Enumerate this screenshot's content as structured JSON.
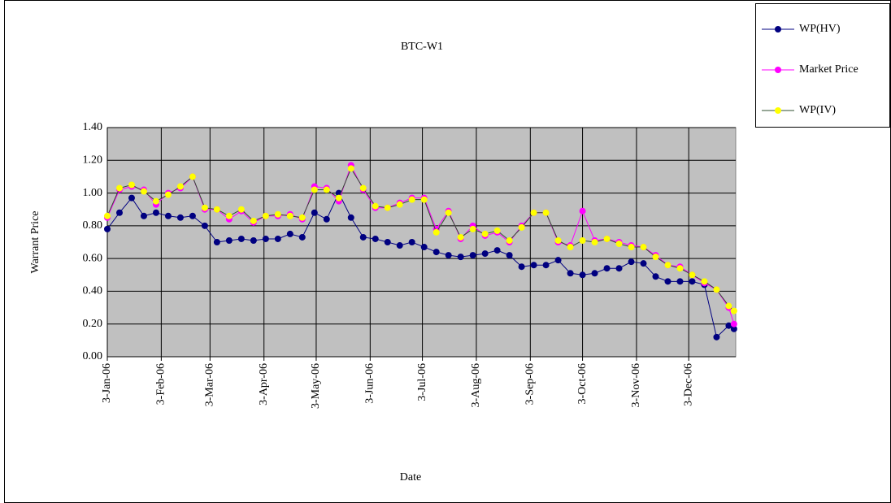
{
  "chart_data": {
    "type": "line",
    "title": "BTC-W1",
    "x_label": "Date",
    "y_label": "Warrant Price",
    "x": [
      "2006-01-03",
      "2006-01-10",
      "2006-01-17",
      "2006-01-24",
      "2006-01-31",
      "2006-02-07",
      "2006-02-14",
      "2006-02-21",
      "2006-02-28",
      "2006-03-07",
      "2006-03-14",
      "2006-03-21",
      "2006-03-28",
      "2006-04-04",
      "2006-04-11",
      "2006-04-18",
      "2006-04-25",
      "2006-05-02",
      "2006-05-09",
      "2006-05-16",
      "2006-05-23",
      "2006-05-30",
      "2006-06-06",
      "2006-06-13",
      "2006-06-20",
      "2006-06-27",
      "2006-07-04",
      "2006-07-11",
      "2006-07-18",
      "2006-07-25",
      "2006-08-01",
      "2006-08-08",
      "2006-08-15",
      "2006-08-22",
      "2006-08-29",
      "2006-09-05",
      "2006-09-12",
      "2006-09-19",
      "2006-09-26",
      "2006-10-03",
      "2006-10-10",
      "2006-10-17",
      "2006-10-24",
      "2006-10-31",
      "2006-11-07",
      "2006-11-14",
      "2006-11-21",
      "2006-11-28",
      "2006-12-05",
      "2006-12-12",
      "2006-12-19",
      "2006-12-26",
      "2006-12-29"
    ],
    "series": [
      {
        "name": "WP(HV)",
        "color": "#000080",
        "line_color": "#000080",
        "values": [
          0.78,
          0.88,
          0.97,
          0.86,
          0.88,
          0.86,
          0.85,
          0.86,
          0.8,
          0.7,
          0.71,
          0.72,
          0.71,
          0.72,
          0.72,
          0.75,
          0.73,
          0.88,
          0.84,
          1.0,
          0.85,
          0.73,
          0.72,
          0.7,
          0.68,
          0.7,
          0.67,
          0.64,
          0.62,
          0.61,
          0.62,
          0.63,
          0.65,
          0.62,
          0.55,
          0.56,
          0.56,
          0.59,
          0.51,
          0.5,
          0.51,
          0.54,
          0.54,
          0.58,
          0.57,
          0.49,
          0.46,
          0.46,
          0.46,
          0.44,
          0.12,
          0.19,
          0.17
        ]
      },
      {
        "name": "Market Price",
        "color": "#ff00ff",
        "line_color": "#ff00ff",
        "values": [
          0.85,
          1.02,
          1.04,
          1.02,
          0.93,
          1.0,
          1.03,
          1.1,
          0.9,
          0.9,
          0.84,
          0.89,
          0.82,
          0.86,
          0.86,
          0.87,
          0.84,
          1.04,
          1.03,
          0.95,
          1.17,
          1.02,
          0.91,
          0.91,
          0.94,
          0.97,
          0.97,
          0.78,
          0.89,
          0.72,
          0.8,
          0.74,
          0.76,
          0.7,
          0.8,
          0.88,
          0.88,
          0.7,
          0.68,
          0.89,
          0.71,
          0.72,
          0.7,
          0.68,
          0.67,
          0.62,
          0.56,
          0.55,
          0.5,
          0.45,
          0.41,
          0.3,
          0.2
        ]
      },
      {
        "name": "WP(IV)",
        "color": "#ffff00",
        "line_color": "#2f4f2f",
        "values": [
          0.86,
          1.03,
          1.05,
          1.01,
          0.95,
          0.99,
          1.04,
          1.1,
          0.91,
          0.9,
          0.86,
          0.9,
          0.83,
          0.86,
          0.87,
          0.86,
          0.85,
          1.02,
          1.02,
          0.97,
          1.15,
          1.03,
          0.92,
          0.91,
          0.93,
          0.96,
          0.96,
          0.76,
          0.88,
          0.73,
          0.78,
          0.75,
          0.77,
          0.71,
          0.79,
          0.88,
          0.88,
          0.71,
          0.67,
          0.71,
          0.7,
          0.72,
          0.69,
          0.67,
          0.67,
          0.61,
          0.56,
          0.54,
          0.5,
          0.46,
          0.41,
          0.31,
          0.28
        ]
      }
    ],
    "xlim": [
      "2006-01-03",
      "2006-12-30"
    ],
    "xticks": [
      {
        "value": "2006-01-03",
        "label": "3-Jan-06"
      },
      {
        "value": "2006-02-03",
        "label": "3-Feb-06"
      },
      {
        "value": "2006-03-03",
        "label": "3-Mar-06"
      },
      {
        "value": "2006-04-03",
        "label": "3-Apr-06"
      },
      {
        "value": "2006-05-03",
        "label": "3-May-06"
      },
      {
        "value": "2006-06-03",
        "label": "3-Jun-06"
      },
      {
        "value": "2006-07-03",
        "label": "3-Jul-06"
      },
      {
        "value": "2006-08-03",
        "label": "3-Aug-06"
      },
      {
        "value": "2006-09-03",
        "label": "3-Sep-06"
      },
      {
        "value": "2006-10-03",
        "label": "3-Oct-06"
      },
      {
        "value": "2006-11-03",
        "label": "3-Nov-06"
      },
      {
        "value": "2006-12-03",
        "label": "3-Dec-06"
      }
    ],
    "ylim": [
      0,
      1.4
    ],
    "yticks": [
      {
        "value": 0,
        "label": "0.00"
      },
      {
        "value": 0.2,
        "label": "0.20"
      },
      {
        "value": 0.4,
        "label": "0.40"
      },
      {
        "value": 0.6,
        "label": "0.60"
      },
      {
        "value": 0.8,
        "label": "0.80"
      },
      {
        "value": 1,
        "label": "1.00"
      },
      {
        "value": 1.2,
        "label": "1.20"
      },
      {
        "value": 1.4,
        "label": "1.40"
      }
    ],
    "grid": true,
    "plot_background": "#c0c0c0",
    "legend": "top-right"
  }
}
